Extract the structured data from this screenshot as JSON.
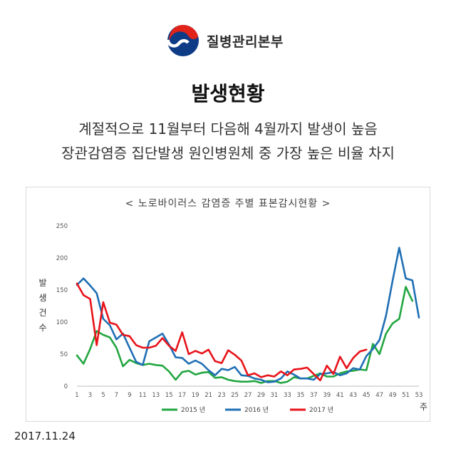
{
  "header": {
    "logo_text": "질병관리본부",
    "logo_icon": "taegeuk-icon",
    "title": "발생현황",
    "subtitle_line1": "계절적으로 11월부터 다음해 4월까지 발생이 높음",
    "subtitle_line2": "장관감염증 집단발생 원인병원체 중 가장 높은 비율 차지"
  },
  "footer": {
    "date": "2017.11.24"
  },
  "chart_data": {
    "type": "line",
    "title": "< 노로바이러스 감염증 주별 표본감시현황 >",
    "xlabel": "주",
    "ylabel": "발생건수",
    "xlim": [
      1,
      53
    ],
    "ylim": [
      0,
      250
    ],
    "y_ticks": [
      0,
      50,
      100,
      150,
      200,
      250
    ],
    "x_ticks": [
      1,
      3,
      5,
      7,
      9,
      11,
      13,
      15,
      17,
      19,
      21,
      23,
      25,
      27,
      29,
      31,
      33,
      35,
      37,
      39,
      41,
      43,
      45,
      47,
      49,
      51,
      53
    ],
    "grid": false,
    "legend_position": "bottom",
    "series": [
      {
        "name": "2015 년",
        "color": "#22a640",
        "x": [
          1,
          2,
          3,
          4,
          5,
          6,
          7,
          8,
          9,
          10,
          11,
          12,
          13,
          14,
          15,
          16,
          17,
          18,
          19,
          20,
          21,
          22,
          23,
          24,
          25,
          26,
          27,
          28,
          29,
          30,
          31,
          32,
          33,
          34,
          35,
          36,
          37,
          38,
          39,
          40,
          41,
          42,
          43,
          44,
          45,
          46,
          47,
          48,
          49,
          50,
          51,
          52
        ],
        "values": [
          48,
          35,
          58,
          86,
          80,
          76,
          60,
          31,
          41,
          36,
          33,
          35,
          33,
          32,
          23,
          10,
          22,
          24,
          18,
          21,
          22,
          13,
          14,
          10,
          8,
          7,
          7,
          8,
          5,
          8,
          8,
          5,
          7,
          14,
          12,
          12,
          16,
          20,
          15,
          15,
          20,
          23,
          24,
          26,
          25,
          66,
          50,
          82,
          98,
          105,
          155,
          133
        ]
      },
      {
        "name": "2016 년",
        "color": "#1f6fb4",
        "x": [
          1,
          2,
          3,
          4,
          5,
          6,
          7,
          8,
          9,
          10,
          11,
          12,
          13,
          14,
          15,
          16,
          17,
          18,
          19,
          20,
          21,
          22,
          23,
          24,
          25,
          26,
          27,
          28,
          29,
          30,
          31,
          32,
          33,
          34,
          35,
          36,
          37,
          38,
          39,
          40,
          41,
          42,
          43,
          44,
          45,
          46,
          47,
          48,
          49,
          50,
          51,
          52,
          53
        ],
        "values": [
          158,
          168,
          157,
          145,
          105,
          95,
          73,
          82,
          60,
          38,
          33,
          70,
          76,
          82,
          65,
          45,
          44,
          35,
          40,
          35,
          25,
          17,
          27,
          25,
          30,
          17,
          16,
          12,
          10,
          6,
          7,
          12,
          23,
          18,
          12,
          12,
          10,
          19,
          20,
          22,
          17,
          20,
          28,
          26,
          47,
          58,
          72,
          110,
          165,
          216,
          168,
          165,
          107
        ]
      },
      {
        "name": "2017 년",
        "color": "#e8131a",
        "x": [
          1,
          2,
          3,
          4,
          5,
          6,
          7,
          8,
          9,
          10,
          11,
          12,
          13,
          14,
          15,
          16,
          17,
          18,
          19,
          20,
          21,
          22,
          23,
          24,
          25,
          26,
          27,
          28,
          29,
          30,
          31,
          32,
          33,
          34,
          35,
          36,
          37,
          38,
          39,
          40,
          41,
          42,
          43,
          44,
          45
        ],
        "values": [
          160,
          142,
          136,
          64,
          131,
          99,
          96,
          80,
          78,
          64,
          60,
          60,
          63,
          75,
          63,
          55,
          84,
          50,
          55,
          51,
          57,
          39,
          36,
          56,
          49,
          40,
          17,
          20,
          14,
          17,
          15,
          23,
          17,
          26,
          27,
          29,
          19,
          9,
          32,
          19,
          46,
          28,
          44,
          54,
          57
        ]
      }
    ]
  }
}
